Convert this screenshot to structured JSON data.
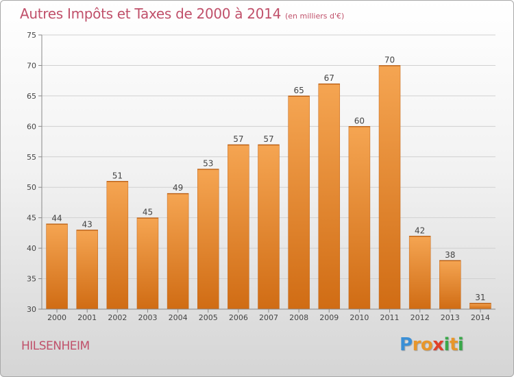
{
  "title": "Autres Impôts et Taxes de 2000 à 2014",
  "title_unit": "(en milliers d'€)",
  "commune": "HILSENHEIM",
  "brand": {
    "text": "Proxiti",
    "letters": [
      {
        "ch": "P",
        "color": "#3a8fd6"
      },
      {
        "ch": "r",
        "color": "#e8962a"
      },
      {
        "ch": "o",
        "color": "#e8962a"
      },
      {
        "ch": "x",
        "color": "#e0402a"
      },
      {
        "ch": "i",
        "color": "#3aa84a"
      },
      {
        "ch": "t",
        "color": "#e8962a"
      },
      {
        "ch": "i",
        "color": "#3aa84a"
      }
    ]
  },
  "colors": {
    "title": "#c0506a",
    "bar_top": "#f5a552",
    "bar_bottom": "#d06c14",
    "grid": "#d0d0d0",
    "axis": "#888888",
    "text": "#444444"
  },
  "chart_data": {
    "type": "bar",
    "title": "Autres Impôts et Taxes de 2000 à 2014",
    "subtitle": "(en milliers d'€)",
    "categories": [
      "2000",
      "2001",
      "2002",
      "2003",
      "2004",
      "2005",
      "2006",
      "2007",
      "2008",
      "2009",
      "2010",
      "2011",
      "2012",
      "2013",
      "2014"
    ],
    "values": [
      44,
      43,
      51,
      45,
      49,
      53,
      57,
      57,
      65,
      67,
      60,
      70,
      42,
      38,
      31
    ],
    "ylim": [
      30,
      75
    ],
    "yticks": [
      30,
      35,
      40,
      45,
      50,
      55,
      60,
      65,
      70,
      75
    ],
    "grid": true,
    "data_labels": true
  }
}
